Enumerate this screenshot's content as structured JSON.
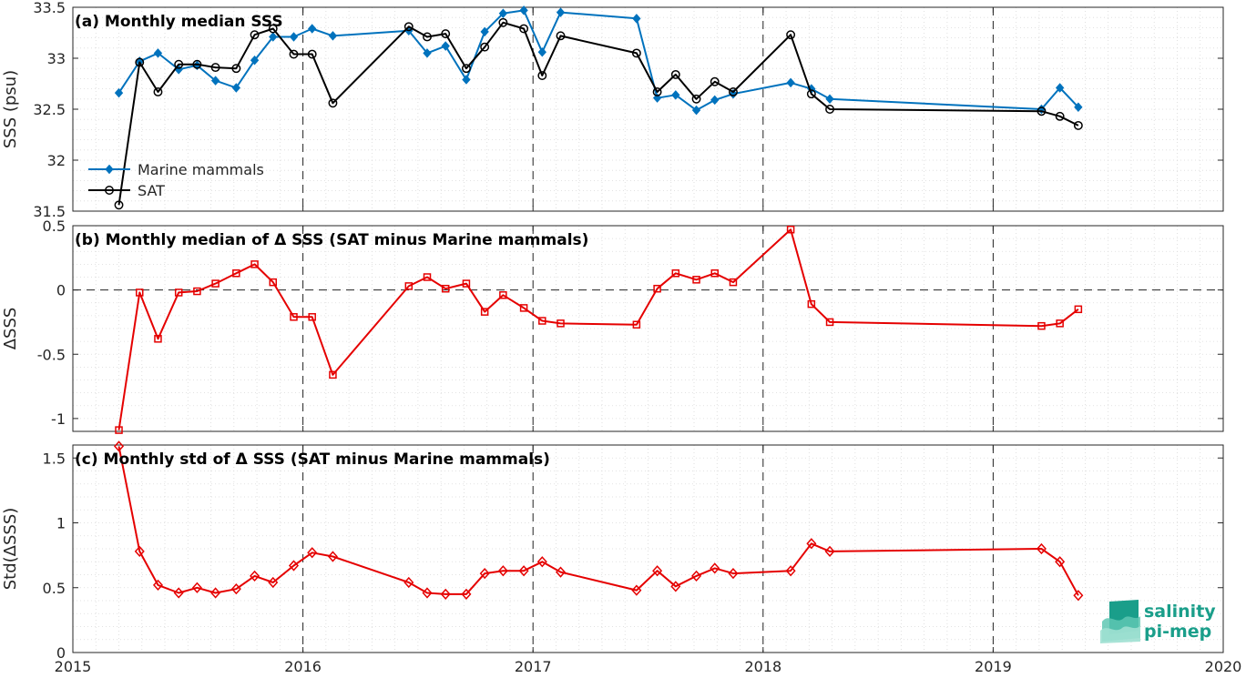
{
  "colors": {
    "mammals": "#0072bd",
    "sat": "#000000",
    "delta": "#e50000",
    "logo": "#1a9e8a"
  },
  "logo": {
    "line1": "salinity",
    "line2": "pi-mep"
  },
  "chart_data": [
    {
      "type": "line",
      "title": "(a) Monthly median SSS",
      "ylabel": "SSS (psu)",
      "xlim": [
        2015,
        2020
      ],
      "ylim": [
        31.5,
        33.5
      ],
      "yticks": [
        "31.5",
        "32",
        "32.5",
        "33",
        "33.5"
      ],
      "grid": true,
      "legend_position": "bottom-left",
      "x": [
        2015.2,
        2015.29,
        2015.37,
        2015.46,
        2015.54,
        2015.62,
        2015.71,
        2015.79,
        2015.87,
        2015.96,
        2016.04,
        2016.13,
        2016.46,
        2016.54,
        2016.62,
        2016.71,
        2016.79,
        2016.87,
        2016.96,
        2017.04,
        2017.12,
        2017.45,
        2017.54,
        2017.62,
        2017.71,
        2017.79,
        2017.87,
        2018.12,
        2018.21,
        2018.29,
        2019.21,
        2019.29,
        2019.37
      ],
      "series": [
        {
          "name": "Marine mammals",
          "marker": "diamond-filled",
          "values": [
            32.66,
            32.97,
            33.05,
            32.89,
            32.93,
            32.78,
            32.71,
            32.98,
            33.21,
            33.21,
            33.29,
            33.22,
            33.27,
            33.05,
            33.12,
            32.79,
            33.26,
            33.44,
            33.47,
            33.06,
            33.45,
            33.39,
            32.61,
            32.64,
            32.49,
            32.59,
            32.65,
            32.76,
            32.7,
            32.6,
            32.5,
            32.71,
            32.52
          ]
        },
        {
          "name": "SAT",
          "marker": "circle-open",
          "values": [
            31.56,
            32.96,
            32.67,
            32.94,
            32.94,
            32.91,
            32.9,
            33.23,
            33.29,
            33.04,
            33.04,
            32.56,
            33.31,
            33.21,
            33.24,
            32.9,
            33.11,
            33.35,
            33.29,
            32.83,
            33.22,
            33.05,
            32.67,
            32.84,
            32.6,
            32.77,
            32.67,
            33.23,
            32.65,
            32.5,
            32.48,
            32.43,
            32.34
          ]
        }
      ]
    },
    {
      "type": "line",
      "title": "(b) Monthly median of Δ SSS (SAT minus Marine mammals)",
      "ylabel": "ΔSSS",
      "xlim": [
        2015,
        2020
      ],
      "ylim": [
        -1.1,
        0.5
      ],
      "yticks": [
        "-1",
        "-0.5",
        "0",
        "0.5"
      ],
      "grid": true,
      "x": [
        2015.2,
        2015.29,
        2015.37,
        2015.46,
        2015.54,
        2015.62,
        2015.71,
        2015.79,
        2015.87,
        2015.96,
        2016.04,
        2016.13,
        2016.46,
        2016.54,
        2016.62,
        2016.71,
        2016.79,
        2016.87,
        2016.96,
        2017.04,
        2017.12,
        2017.45,
        2017.54,
        2017.62,
        2017.71,
        2017.79,
        2017.87,
        2018.12,
        2018.21,
        2018.29,
        2019.21,
        2019.29,
        2019.37
      ],
      "series": [
        {
          "name": "",
          "marker": "square-open",
          "values": [
            -1.09,
            -0.02,
            -0.38,
            -0.02,
            -0.01,
            0.05,
            0.13,
            0.2,
            0.06,
            -0.21,
            -0.21,
            -0.66,
            0.03,
            0.1,
            0.01,
            0.05,
            -0.17,
            -0.04,
            -0.14,
            -0.24,
            -0.26,
            -0.27,
            0.01,
            0.13,
            0.08,
            0.13,
            0.06,
            0.47,
            -0.11,
            -0.25,
            -0.28,
            -0.26,
            -0.15
          ]
        }
      ]
    },
    {
      "type": "line",
      "title": "(c) Monthly std of Δ SSS (SAT minus Marine mammals)",
      "ylabel": "Std(ΔSSS)",
      "xlim": [
        2015,
        2020
      ],
      "ylim": [
        0,
        1.6
      ],
      "yticks": [
        "0",
        "0.5",
        "1",
        "1.5"
      ],
      "xticks": [
        "2015",
        "2016",
        "2017",
        "2018",
        "2019",
        "2020"
      ],
      "grid": true,
      "x": [
        2015.2,
        2015.29,
        2015.37,
        2015.46,
        2015.54,
        2015.62,
        2015.71,
        2015.79,
        2015.87,
        2015.96,
        2016.04,
        2016.13,
        2016.46,
        2016.54,
        2016.62,
        2016.71,
        2016.79,
        2016.87,
        2016.96,
        2017.04,
        2017.12,
        2017.45,
        2017.54,
        2017.62,
        2017.71,
        2017.79,
        2017.87,
        2018.12,
        2018.21,
        2018.29,
        2019.21,
        2019.29,
        2019.37
      ],
      "series": [
        {
          "name": "",
          "marker": "diamond-open",
          "values": [
            1.59,
            0.78,
            0.52,
            0.46,
            0.5,
            0.46,
            0.49,
            0.59,
            0.54,
            0.67,
            0.77,
            0.74,
            0.54,
            0.46,
            0.45,
            0.45,
            0.61,
            0.63,
            0.63,
            0.7,
            0.62,
            0.48,
            0.63,
            0.51,
            0.59,
            0.65,
            0.61,
            0.63,
            0.84,
            0.78,
            0.8,
            0.7,
            0.44
          ]
        }
      ]
    }
  ]
}
